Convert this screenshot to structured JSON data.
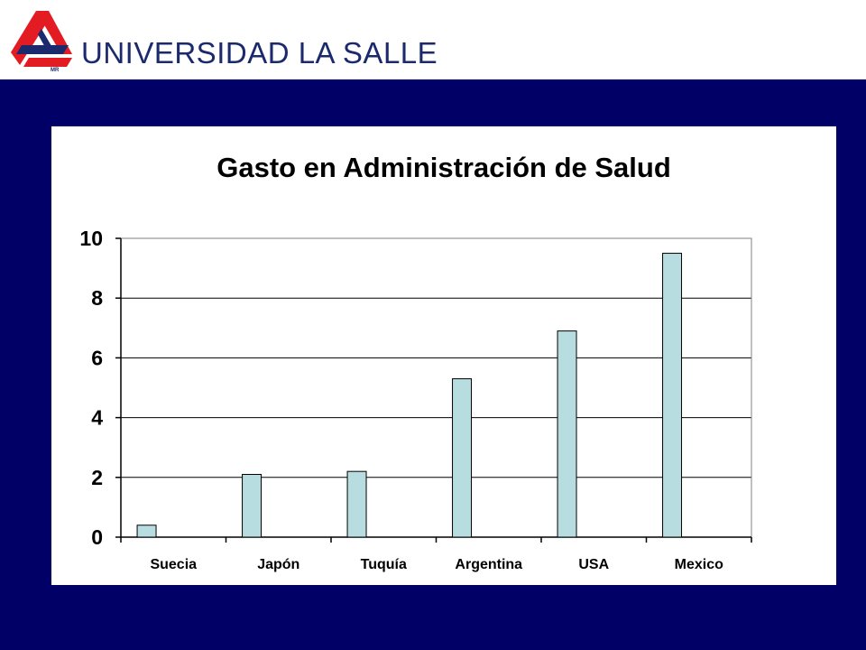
{
  "header": {
    "logo_text": "UNIVERSIDAD LA SALLE",
    "logo_mark_text": "MR",
    "brand_red": "#e31b23",
    "brand_navy": "#1a2a6c"
  },
  "background_color": "#000066",
  "chart_data": {
    "type": "bar",
    "title": "Gasto en Administración de Salud",
    "xlabel": "",
    "ylabel": "",
    "categories": [
      "Suecia",
      "Japón",
      "Tuquía",
      "Argentina",
      "USA",
      "Mexico"
    ],
    "values": [
      0.4,
      2.1,
      2.2,
      5.3,
      6.9,
      9.5
    ],
    "ylim": [
      0,
      10
    ],
    "yticks": [
      0,
      2,
      4,
      6,
      8,
      10
    ],
    "grid": true,
    "legend": "none",
    "bar_color": "#b8dde0"
  }
}
